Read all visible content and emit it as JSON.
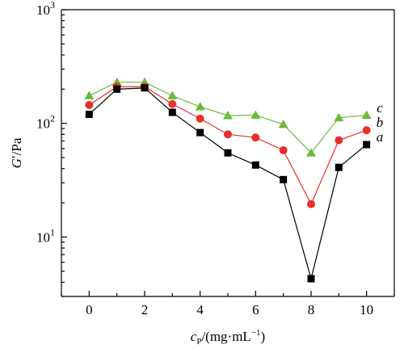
{
  "chart_data": {
    "type": "line",
    "y_scale": "log",
    "x": [
      0,
      1,
      2,
      3,
      4,
      5,
      6,
      7,
      8,
      9,
      10
    ],
    "xlim": [
      -1,
      11
    ],
    "ylim": [
      3,
      1000
    ],
    "xticks": [
      0,
      2,
      4,
      6,
      8,
      10
    ],
    "xtick_labels": [
      "0",
      "2",
      "4",
      "6",
      "8",
      "10"
    ],
    "ytick_labels": [
      {
        "value": 10,
        "base": "10",
        "exp": "1"
      },
      {
        "value": 100,
        "base": "10",
        "exp": "2"
      },
      {
        "value": 1000,
        "base": "10",
        "exp": "3"
      }
    ],
    "xlabel": {
      "symbol": "c",
      "subscript": "P",
      "rest": "/(mg·mL",
      "sup": "−1",
      "close": ")"
    },
    "ylabel": {
      "symbol": "G",
      "prime": "′",
      "rest": "/Pa"
    },
    "grid": false,
    "legend": "none",
    "series": [
      {
        "name": "a",
        "marker": "square",
        "color": "#000000",
        "values": [
          120,
          200,
          205,
          125,
          83,
          55,
          43,
          32,
          4.3,
          41,
          65
        ]
      },
      {
        "name": "b",
        "marker": "circle",
        "color": "#e8302a",
        "values": [
          145,
          210,
          210,
          148,
          110,
          80,
          75,
          58,
          19.5,
          71,
          87
        ]
      },
      {
        "name": "c",
        "marker": "triangle",
        "color": "#6dbb3e",
        "values": [
          175,
          230,
          230,
          175,
          140,
          117,
          118,
          98,
          55,
          112,
          118
        ]
      }
    ]
  }
}
